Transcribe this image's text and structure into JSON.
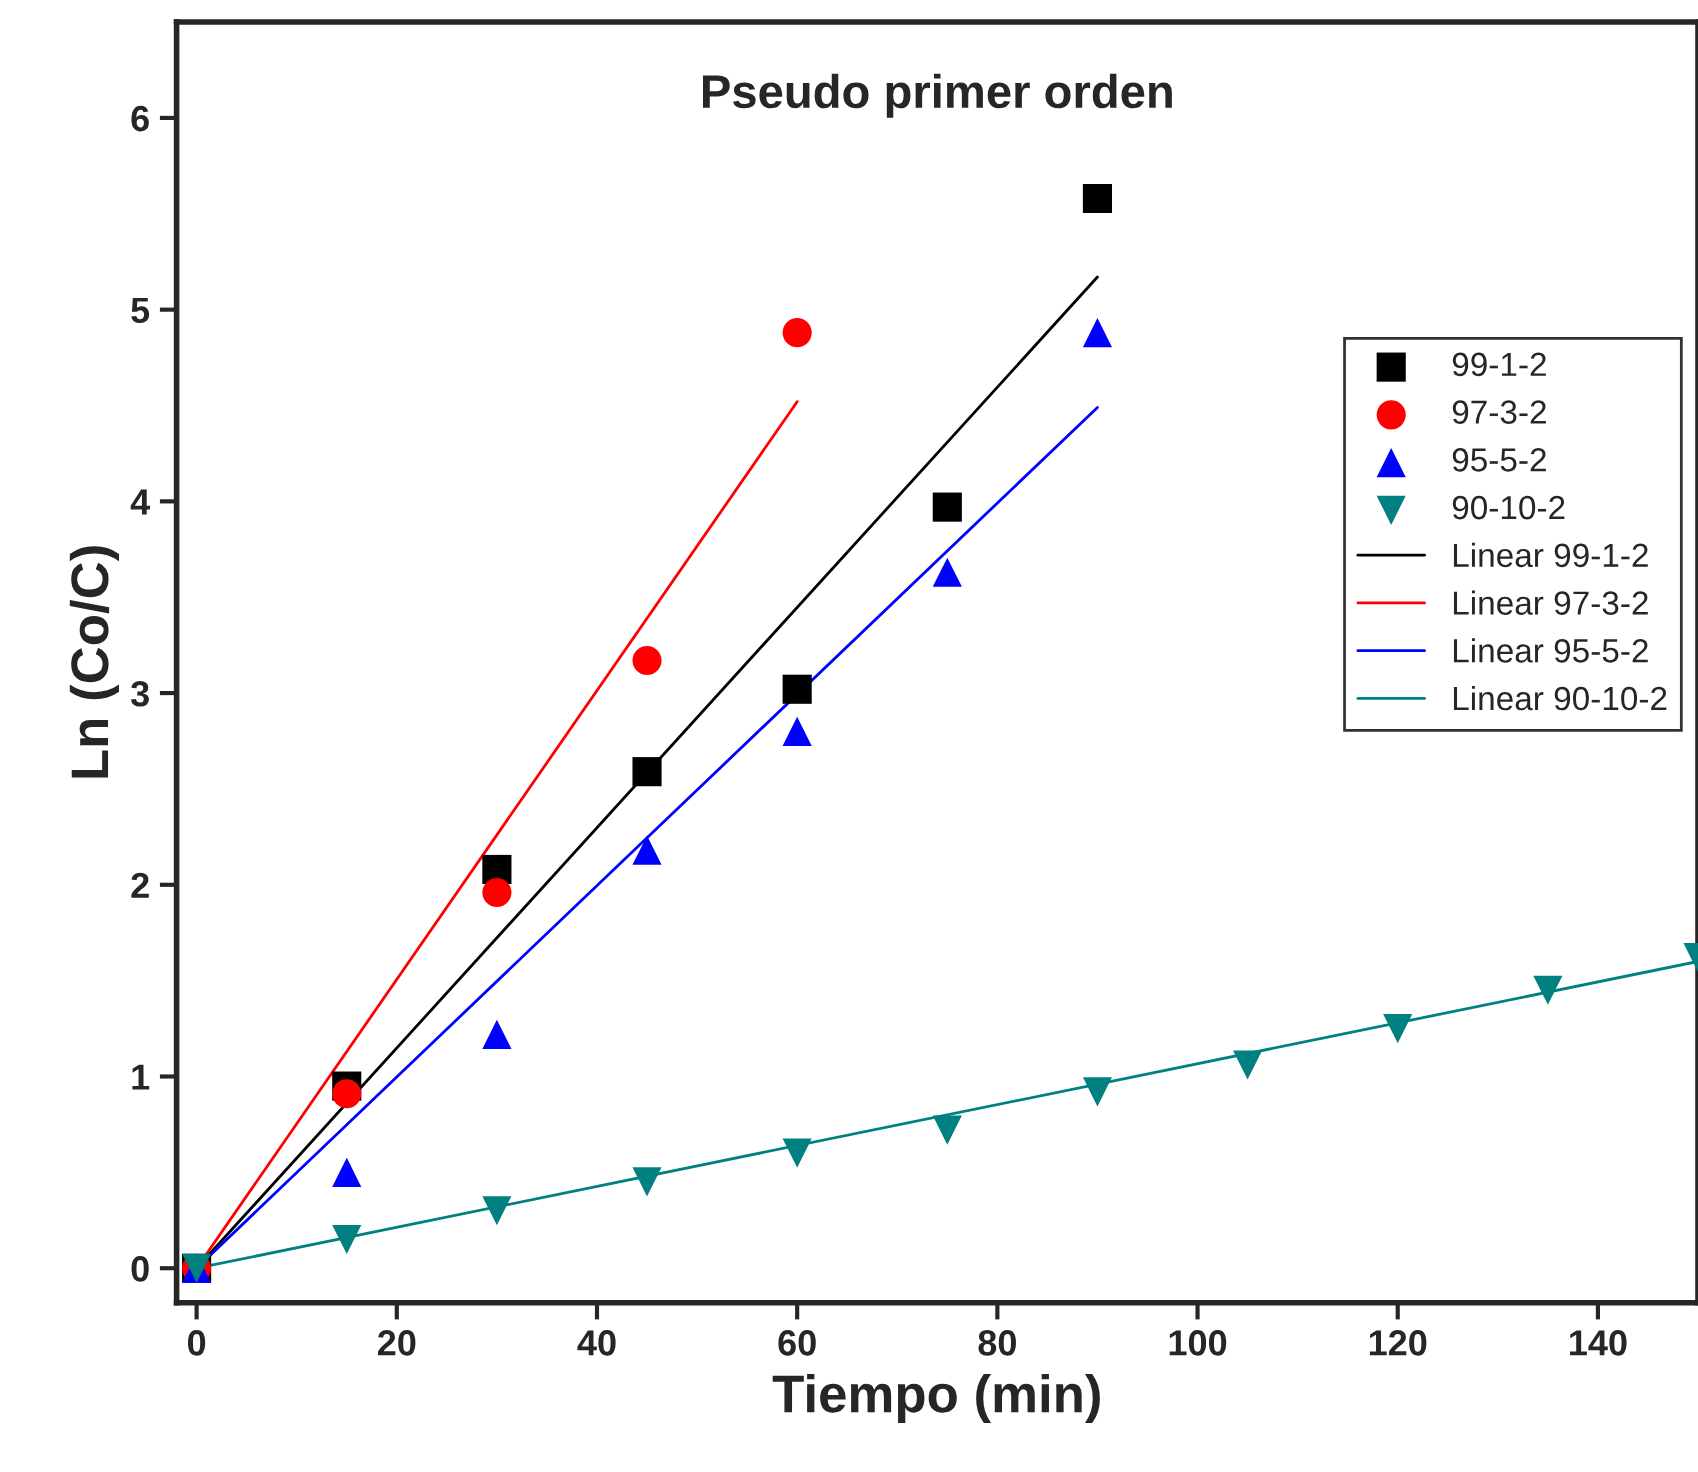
{
  "chart_data": {
    "type": "scatter",
    "title": "Pseudo primer orden",
    "xlabel": "Tiempo (min)",
    "ylabel": "Ln (Co/C)",
    "xlim": [
      -2,
      150
    ],
    "ylim": [
      -0.18,
      6.5
    ],
    "xticks": [
      0,
      20,
      40,
      60,
      80,
      100,
      120,
      140
    ],
    "yticks": [
      0,
      1,
      2,
      3,
      4,
      5,
      6
    ],
    "grid": false,
    "legend": "right",
    "series": [
      {
        "name": "99-1-2",
        "marker": "square",
        "color": "#000000",
        "x": [
          0,
          15,
          30,
          45,
          60,
          75,
          90
        ],
        "values": [
          0,
          0.95,
          2.08,
          2.59,
          3.02,
          3.97,
          5.58
        ]
      },
      {
        "name": "97-3-2",
        "marker": "circle",
        "color": "#ff0000",
        "x": [
          0,
          15,
          30,
          45,
          60
        ],
        "values": [
          0,
          0.91,
          1.96,
          3.17,
          4.88
        ]
      },
      {
        "name": "95-5-2",
        "marker": "triangle",
        "color": "#0000ff",
        "x": [
          0,
          15,
          30,
          45,
          60,
          75,
          90
        ],
        "values": [
          0,
          0.5,
          1.22,
          2.18,
          2.8,
          3.63,
          4.88
        ]
      },
      {
        "name": "90-10-2",
        "marker": "triangle_down",
        "color": "#008080",
        "x": [
          0,
          15,
          30,
          45,
          60,
          75,
          90,
          105,
          120,
          135,
          150
        ],
        "values": [
          0,
          0.15,
          0.3,
          0.45,
          0.6,
          0.72,
          0.92,
          1.06,
          1.25,
          1.45,
          1.62
        ]
      },
      {
        "name": "Linear 99-1-2",
        "type": "line",
        "color": "#000000",
        "x": [
          0,
          90
        ],
        "values": [
          0,
          5.17
        ]
      },
      {
        "name": "Linear 97-3-2",
        "type": "line",
        "color": "#ff0000",
        "x": [
          0,
          60
        ],
        "values": [
          0,
          4.52
        ]
      },
      {
        "name": "Linear 95-5-2",
        "type": "line",
        "color": "#0000ff",
        "x": [
          0,
          90
        ],
        "values": [
          0,
          4.49
        ]
      },
      {
        "name": "Linear 90-10-2",
        "type": "line",
        "color": "#008080",
        "x": [
          0,
          150
        ],
        "values": [
          0,
          1.6
        ]
      }
    ]
  }
}
